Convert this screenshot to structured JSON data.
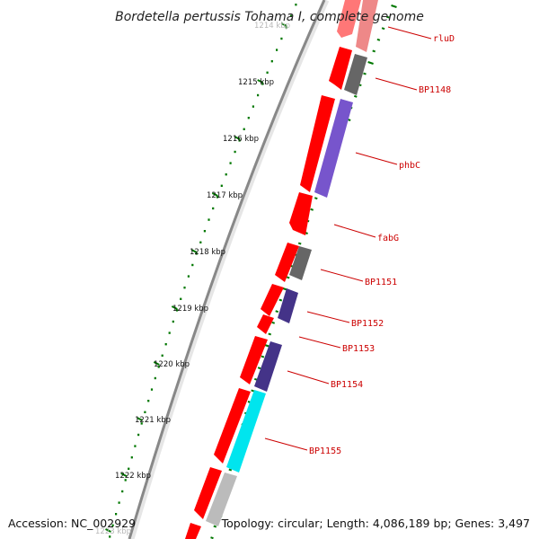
{
  "title": "Bordetella pertussis Tohama I, complete genome",
  "footer": {
    "accession": "Accession: NC_002929",
    "topology": "Topology: circular; Length: 4,086,189 bp; Genes: 3,497"
  },
  "colors": {
    "backbone": "#888888",
    "tick": "#007700",
    "forward": "#ff0000",
    "label": "#cc0000",
    "grey_gene": "#666666",
    "purple_gene": "#6644cc",
    "navy_gene": "#443388",
    "cyan_gene": "#00e5ee",
    "light_gene": "#bbbbbb"
  },
  "kbp_labels": [
    "1214 kbp",
    "1215 kbp",
    "1216 kbp",
    "1217 kbp",
    "1218 kbp",
    "1219 kbp",
    "1220 kbp",
    "1221 kbp",
    "1222 kbp",
    "1223 kbp"
  ],
  "gene_labels": [
    "rluD",
    "BP1148",
    "phbC",
    "fabG",
    "BP1151",
    "BP1152",
    "BP1153",
    "BP1154",
    "BP1155"
  ]
}
